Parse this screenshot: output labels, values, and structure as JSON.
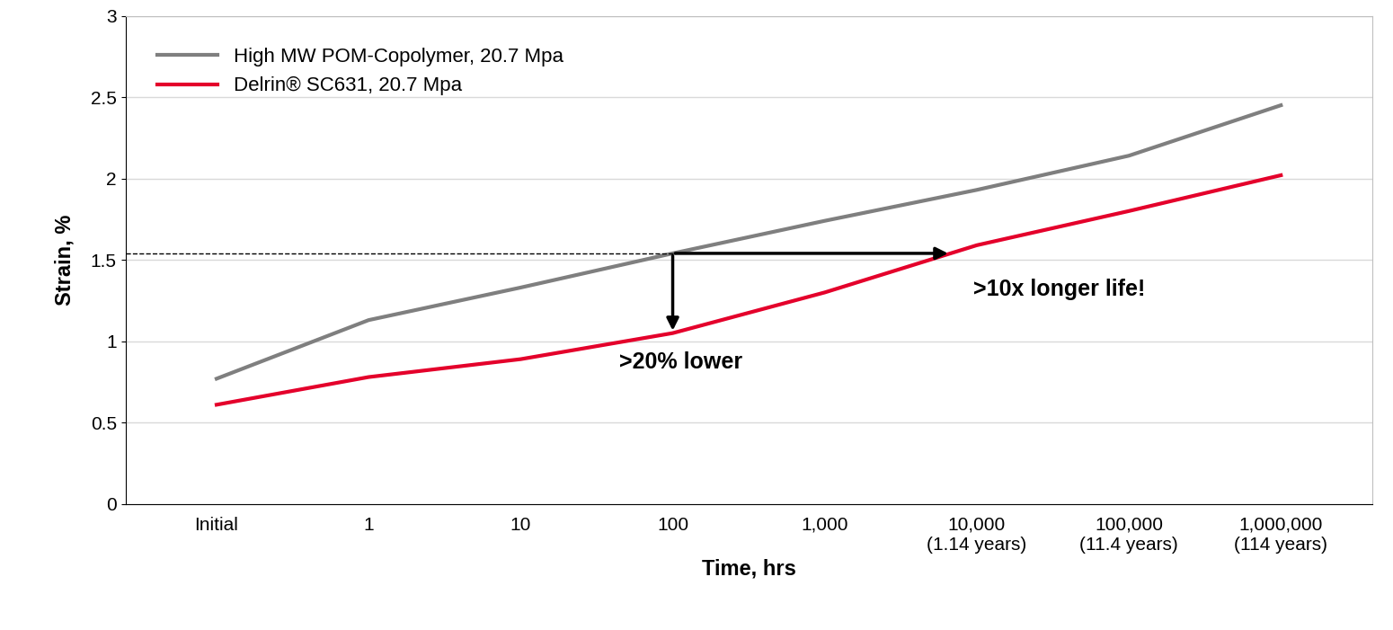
{
  "chart_data": {
    "type": "line",
    "x_label": "Time, hrs",
    "y_label": "Strain, %",
    "categories": [
      "Initial",
      "1",
      "10",
      "100",
      "1,000",
      "10,000\n(1.14 years)",
      "100,000\n(11.4 years)",
      "1,000,000\n(114 years)"
    ],
    "series": [
      {
        "name": "High MW POM-Copolymer, 20.7 Mpa",
        "color": "#7f7f7f",
        "values": [
          0.77,
          1.13,
          1.33,
          1.54,
          1.74,
          1.93,
          2.14,
          2.45
        ]
      },
      {
        "name": "Delrin® SC631, 20.7 Mpa",
        "color": "#e4002b",
        "values": [
          0.61,
          0.78,
          0.89,
          1.05,
          1.3,
          1.59,
          1.8,
          2.02
        ]
      }
    ],
    "annotations": [
      ">20% lower",
      ">10x longer life!"
    ],
    "ylim": [
      0,
      3
    ],
    "yticks": [
      0,
      0.5,
      1,
      1.5,
      2,
      2.5,
      3
    ],
    "grid": true,
    "legend": "upper left"
  }
}
